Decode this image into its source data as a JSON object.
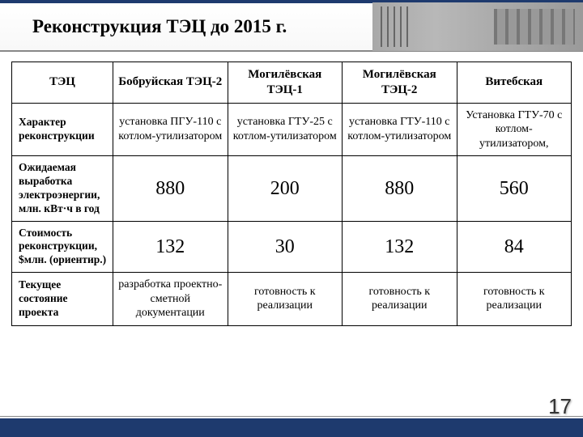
{
  "title": "Реконструкция ТЭЦ до 2015 г.",
  "page_number": "17",
  "table": {
    "header_labels": [
      "ТЭЦ",
      "Бобруйская ТЭЦ-2",
      "Могилёвская ТЭЦ-1",
      "Могилёвская ТЭЦ-2",
      "Витебская"
    ],
    "rows": [
      {
        "label": "Характер реконструкции",
        "cells": [
          "установка ПГУ-110 с котлом-утилизатором",
          "установка ГТУ-25 с котлом-утилизатором",
          "установка ГТУ-110 с котлом-утилизатором",
          "Установка ГТУ-70 с котлом-утилизатором,"
        ],
        "big": false
      },
      {
        "label": "Ожидаемая выработка электроэнергии, млн. кВт·ч в год",
        "cells": [
          "880",
          "200",
          "880",
          "560"
        ],
        "big": true
      },
      {
        "label": "Стоимость реконструкции, $млн. (ориентир.)",
        "cells": [
          "132",
          "30",
          "132",
          "84"
        ],
        "big": true
      },
      {
        "label": "Текущее состояние проекта",
        "cells": [
          "разработка проектно-сметной документации",
          "готовность к реализации",
          "готовность к реализации",
          "готовность к реализации"
        ],
        "big": false
      }
    ]
  },
  "colors": {
    "accent": "#1e3a6e",
    "border": "#000000",
    "bg": "#ffffff"
  }
}
